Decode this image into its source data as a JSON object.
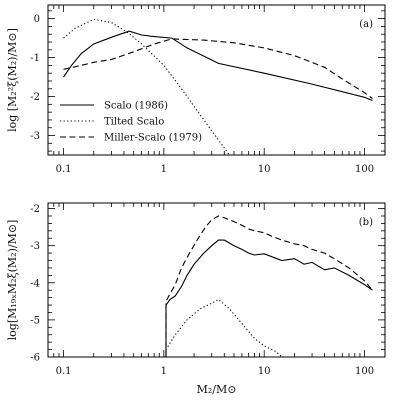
{
  "chart_data": [
    {
      "type": "line",
      "panel_tag": "(a)",
      "x_scale": "log",
      "xlim": [
        0.07,
        160
      ],
      "ylim": [
        -3.5,
        0.35
      ],
      "ylabel": "log [M₂²ξ(M₂)/M⊙]",
      "xlabel": "",
      "x_ticks": [
        0.1,
        1,
        10,
        100
      ],
      "x_tick_labels": [
        "0.1",
        "1",
        "10",
        "100"
      ],
      "y_ticks": [
        0,
        -1,
        -2,
        -3
      ],
      "y_tick_labels": [
        "0",
        "-1",
        "-2",
        "-3"
      ],
      "legend_position": "lower-left",
      "series": [
        {
          "name": "Scalo (1986)",
          "style": "solid",
          "color": "#000000",
          "x": [
            0.1,
            0.12,
            0.15,
            0.2,
            0.3,
            0.45,
            0.6,
            0.8,
            1.2,
            1.7,
            3.5,
            10,
            30,
            100,
            120
          ],
          "y": [
            -1.5,
            -1.2,
            -0.9,
            -0.65,
            -0.48,
            -0.32,
            -0.42,
            -0.46,
            -0.5,
            -0.75,
            -1.15,
            -1.4,
            -1.68,
            -2.02,
            -2.1
          ]
        },
        {
          "name": "Tilted Scalo",
          "style": "dotted",
          "color": "#000000",
          "x": [
            0.1,
            0.13,
            0.2,
            0.3,
            0.45,
            0.6,
            1.0,
            1.5,
            2.5,
            4.5
          ],
          "y": [
            -0.5,
            -0.25,
            -0.02,
            -0.1,
            -0.38,
            -0.65,
            -1.2,
            -1.8,
            -2.6,
            -3.5
          ]
        },
        {
          "name": "Miller-Scalo (1979)",
          "style": "dashed",
          "color": "#000000",
          "x": [
            0.1,
            0.15,
            0.2,
            0.3,
            0.5,
            0.8,
            1.2,
            2.5,
            5,
            10,
            20,
            40,
            60,
            100,
            120
          ],
          "y": [
            -1.3,
            -1.2,
            -1.12,
            -1.05,
            -0.85,
            -0.65,
            -0.52,
            -0.55,
            -0.62,
            -0.75,
            -0.95,
            -1.25,
            -1.55,
            -1.9,
            -2.05
          ]
        }
      ]
    },
    {
      "type": "line",
      "panel_tag": "(b)",
      "x_scale": "log",
      "xlim": [
        0.07,
        160
      ],
      "ylim": [
        -6,
        -1.85
      ],
      "ylabel": "log[M₁₉ₓM₂ξ(M₂)/M⊙]",
      "xlabel": "M₂/M⊙",
      "x_ticks": [
        0.1,
        1,
        10,
        100
      ],
      "x_tick_labels": [
        "0.1",
        "1",
        "10",
        "100"
      ],
      "y_ticks": [
        -2,
        -3,
        -4,
        -5,
        -6
      ],
      "y_tick_labels": [
        "-2",
        "-3",
        "-4",
        "-5",
        "-6"
      ],
      "series": [
        {
          "name": "Scalo (1986)",
          "style": "solid",
          "color": "#000000",
          "x": [
            1.05,
            1.05,
            1.15,
            1.3,
            1.5,
            1.7,
            2.0,
            2.5,
            3.0,
            3.5,
            4.0,
            5.0,
            6.0,
            7.0,
            8.0,
            10,
            12,
            15,
            20,
            25,
            30,
            40,
            50,
            70,
            100,
            120
          ],
          "y": [
            -6,
            -4.6,
            -4.45,
            -4.35,
            -4.1,
            -3.8,
            -3.5,
            -3.2,
            -3.0,
            -2.85,
            -2.85,
            -3.0,
            -3.1,
            -3.2,
            -3.25,
            -3.22,
            -3.3,
            -3.4,
            -3.35,
            -3.5,
            -3.45,
            -3.65,
            -3.6,
            -3.8,
            -4.05,
            -4.2
          ]
        },
        {
          "name": "Tilted Scalo",
          "style": "dotted",
          "color": "#000000",
          "x": [
            1.05,
            1.05,
            1.3,
            1.7,
            2.3,
            3.0,
            3.5,
            4.5,
            6.0,
            8.0,
            10,
            13,
            15
          ],
          "y": [
            -6,
            -5.8,
            -5.4,
            -5.0,
            -4.7,
            -4.55,
            -4.45,
            -4.7,
            -5.1,
            -5.5,
            -5.7,
            -5.85,
            -6
          ]
        },
        {
          "name": "Miller-Scalo (1979)",
          "style": "dashed",
          "color": "#000000",
          "x": [
            1.05,
            1.05,
            1.15,
            1.3,
            1.5,
            1.8,
            2.2,
            2.6,
            3.0,
            3.5,
            4.0,
            5.0,
            6.0,
            7.0,
            8.0,
            10,
            12,
            15,
            20,
            25,
            30,
            40,
            50,
            70,
            100,
            120
          ],
          "y": [
            -6,
            -4.5,
            -4.3,
            -4.05,
            -3.6,
            -3.2,
            -2.8,
            -2.5,
            -2.3,
            -2.2,
            -2.25,
            -2.35,
            -2.45,
            -2.55,
            -2.6,
            -2.65,
            -2.75,
            -2.85,
            -2.95,
            -3.0,
            -3.1,
            -3.2,
            -3.35,
            -3.6,
            -3.95,
            -4.2
          ]
        }
      ]
    }
  ]
}
